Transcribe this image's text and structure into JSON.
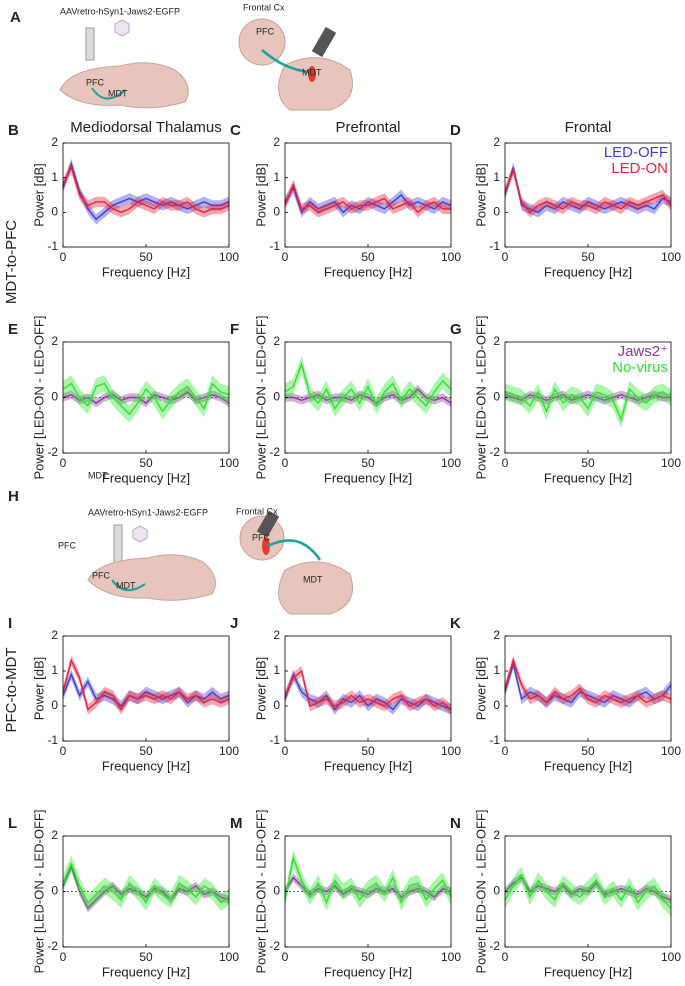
{
  "figure": {
    "panel_a": "A",
    "panel_h": "H",
    "row_labels": [
      "MDT-to-PFC",
      "PFC-to-MDT"
    ],
    "schematic_a": {
      "virus": "AAVretro-hSyn1-Jaws2-EGFP",
      "pfc": "PFC",
      "mdt": "MDT",
      "frontal": "Frontal Cx",
      "pfc2": "PFC",
      "mdt2": "MDT"
    },
    "schematic_h": {
      "virus": "AAVretro-hSyn1-Jaws2-EGFP",
      "stray_pfc": "PFC",
      "pfc": "PFC",
      "mdt": "MDT",
      "frontal": "Frontal Cx",
      "pfc2": "PFC",
      "mdt2": "MDT"
    },
    "stray_mdt": "MDT"
  },
  "chart_data": [
    {
      "type": "line",
      "panel": "B",
      "title": "Mediodorsal Thalamus",
      "xlabel": "Frequency [Hz]",
      "ylabel": "Power [dB]",
      "x": [
        0,
        5,
        10,
        15,
        20,
        25,
        30,
        35,
        40,
        45,
        50,
        55,
        60,
        65,
        70,
        75,
        80,
        85,
        90,
        95,
        100
      ],
      "xlim": [
        0,
        100
      ],
      "xticks": [
        0,
        50,
        100
      ],
      "ylim": [
        -1,
        2
      ],
      "yticks": [
        -1,
        0,
        1,
        2
      ],
      "series": [
        {
          "color": "#3b3fd6",
          "error": 0.15,
          "values": [
            0.7,
            1.4,
            0.6,
            0.1,
            -0.2,
            0.0,
            0.2,
            0.3,
            0.4,
            0.3,
            0.4,
            0.3,
            0.2,
            0.3,
            0.2,
            0.1,
            0.2,
            0.3,
            0.2,
            0.2,
            0.3
          ]
        },
        {
          "color": "#e4243a",
          "error": 0.15,
          "values": [
            0.8,
            1.3,
            0.5,
            0.2,
            0.3,
            0.3,
            0.1,
            0.0,
            0.1,
            0.3,
            0.2,
            0.1,
            0.3,
            0.2,
            0.2,
            0.3,
            0.1,
            0.0,
            0.1,
            0.1,
            0.2
          ]
        }
      ]
    },
    {
      "type": "line",
      "panel": "C",
      "title": "Prefrontal",
      "xlabel": "Frequency [Hz]",
      "ylabel": "Power [dB]",
      "x": [
        0,
        5,
        10,
        15,
        20,
        25,
        30,
        35,
        40,
        45,
        50,
        55,
        60,
        65,
        70,
        75,
        80,
        85,
        90,
        95,
        100
      ],
      "xlim": [
        0,
        100
      ],
      "xticks": [
        0,
        50,
        100
      ],
      "ylim": [
        -1,
        2
      ],
      "yticks": [
        -1,
        0,
        1,
        2
      ],
      "series": [
        {
          "color": "#3b3fd6",
          "error": 0.15,
          "values": [
            0.3,
            0.7,
            0.0,
            0.3,
            0.1,
            0.2,
            0.3,
            0.0,
            0.2,
            0.1,
            0.3,
            0.2,
            0.1,
            0.3,
            0.5,
            0.2,
            0.3,
            0.2,
            0.1,
            0.3,
            0.2
          ]
        },
        {
          "color": "#e4243a",
          "error": 0.15,
          "values": [
            0.2,
            0.8,
            0.1,
            0.2,
            0.0,
            0.1,
            0.2,
            0.3,
            0.1,
            0.2,
            0.2,
            0.3,
            0.4,
            0.1,
            0.2,
            0.3,
            0.0,
            0.2,
            0.3,
            0.1,
            0.1
          ]
        }
      ]
    },
    {
      "type": "line",
      "panel": "D",
      "title": "Frontal",
      "xlabel": "Frequency [Hz]",
      "ylabel": "Power [dB]",
      "legend": "upper right",
      "x": [
        0,
        5,
        10,
        15,
        20,
        25,
        30,
        35,
        40,
        45,
        50,
        55,
        60,
        65,
        70,
        75,
        80,
        85,
        90,
        95,
        100
      ],
      "xlim": [
        0,
        100
      ],
      "xticks": [
        0,
        50,
        100
      ],
      "ylim": [
        -1,
        2
      ],
      "yticks": [
        -1,
        0,
        1,
        2
      ],
      "series": [
        {
          "name": "LED-OFF",
          "color": "#3b3fd6",
          "error": 0.15,
          "values": [
            0.5,
            1.3,
            0.2,
            0.1,
            0.0,
            0.2,
            0.1,
            0.3,
            0.2,
            0.1,
            0.3,
            0.2,
            0.1,
            0.2,
            0.3,
            0.2,
            0.1,
            0.2,
            0.1,
            0.4,
            0.3
          ]
        },
        {
          "name": "LED-ON",
          "color": "#e4243a",
          "error": 0.15,
          "values": [
            0.6,
            1.2,
            0.3,
            0.0,
            0.2,
            0.3,
            0.2,
            0.1,
            0.3,
            0.2,
            0.2,
            0.1,
            0.3,
            0.2,
            0.1,
            0.3,
            0.2,
            0.3,
            0.4,
            0.5,
            0.2
          ]
        }
      ]
    },
    {
      "type": "line",
      "panel": "E",
      "xlabel": "Frequency [Hz]",
      "ylabel": "Power [LED-ON - LED-OFF]",
      "hline": 0,
      "x": [
        0,
        5,
        10,
        15,
        20,
        25,
        30,
        35,
        40,
        45,
        50,
        55,
        60,
        65,
        70,
        75,
        80,
        85,
        90,
        95,
        100
      ],
      "xlim": [
        0,
        100
      ],
      "xticks": [
        0,
        50,
        100
      ],
      "ylim": [
        -2,
        2
      ],
      "yticks": [
        -2,
        0,
        2
      ],
      "series": [
        {
          "color": "#8b3a9c",
          "error": 0.15,
          "values": [
            0,
            0.1,
            -0.1,
            0,
            -0.2,
            0,
            0.1,
            -0.1,
            0,
            0,
            -0.2,
            0.1,
            0,
            -0.1,
            0,
            0.2,
            -0.1,
            0,
            0.1,
            0,
            -0.2
          ]
        },
        {
          "color": "#2fe22f",
          "error": 0.3,
          "values": [
            0.3,
            0.5,
            0,
            -0.3,
            0.4,
            0.5,
            0,
            -0.3,
            -0.6,
            -0.2,
            0.3,
            0,
            -0.5,
            -0.1,
            0.2,
            0.4,
            0,
            -0.4,
            0.5,
            0.2,
            0.1
          ]
        }
      ]
    },
    {
      "type": "line",
      "panel": "F",
      "xlabel": "Frequency [Hz]",
      "ylabel": "Power [LED-ON - LED-OFF]",
      "hline": 0,
      "x": [
        0,
        5,
        10,
        15,
        20,
        25,
        30,
        35,
        40,
        45,
        50,
        55,
        60,
        65,
        70,
        75,
        80,
        85,
        90,
        95,
        100
      ],
      "xlim": [
        0,
        100
      ],
      "xticks": [
        0,
        50,
        100
      ],
      "ylim": [
        -2,
        2
      ],
      "yticks": [
        -2,
        0,
        2
      ],
      "series": [
        {
          "color": "#8b3a9c",
          "error": 0.15,
          "values": [
            0,
            0,
            -0.1,
            0,
            0.1,
            -0.1,
            0,
            0,
            -0.1,
            0.1,
            0,
            -0.2,
            0,
            0.1,
            -0.1,
            0,
            0.3,
            0,
            -0.1,
            0,
            -0.2
          ]
        },
        {
          "color": "#2fe22f",
          "error": 0.3,
          "values": [
            0.2,
            0.4,
            1.2,
            0.1,
            -0.2,
            0.3,
            -0.4,
            0,
            0.3,
            -0.2,
            0.4,
            -0.3,
            0.2,
            0.5,
            -0.1,
            0.3,
            0,
            -0.3,
            0.2,
            0.6,
            0.3
          ]
        }
      ]
    },
    {
      "type": "line",
      "panel": "G",
      "xlabel": "Frequency [Hz]",
      "ylabel": "Power [LED-ON - LED-OFF]",
      "hline": 0,
      "legend": "upper right",
      "x": [
        0,
        5,
        10,
        15,
        20,
        25,
        30,
        35,
        40,
        45,
        50,
        55,
        60,
        65,
        70,
        75,
        80,
        85,
        90,
        95,
        100
      ],
      "xlim": [
        0,
        100
      ],
      "xticks": [
        0,
        50,
        100
      ],
      "ylim": [
        -2,
        2
      ],
      "yticks": [
        -2,
        0,
        2
      ],
      "series": [
        {
          "name": "Jaws2⁺",
          "color": "#8b3a9c",
          "error": 0.15,
          "values": [
            0.1,
            0,
            -0.1,
            0.1,
            0,
            -0.1,
            0,
            0.1,
            -0.1,
            0,
            0.1,
            0,
            -0.1,
            0,
            0.1,
            0,
            -0.1,
            0,
            0.1,
            0,
            0
          ]
        },
        {
          "name": "No-virus",
          "color": "#2fe22f",
          "error": 0.3,
          "values": [
            0.2,
            0.1,
            0,
            -0.3,
            0.2,
            -0.5,
            0.3,
            -0.2,
            0.1,
            0,
            -0.4,
            0.2,
            0.1,
            -0.1,
            -0.8,
            0.3,
            0,
            -0.2,
            0.1,
            0.2,
            0
          ]
        }
      ]
    },
    {
      "type": "line",
      "panel": "I",
      "xlabel": "Frequency [Hz]",
      "ylabel": "Power [dB]",
      "x": [
        0,
        5,
        10,
        15,
        20,
        25,
        30,
        35,
        40,
        45,
        50,
        55,
        60,
        65,
        70,
        75,
        80,
        85,
        90,
        95,
        100
      ],
      "xlim": [
        0,
        100
      ],
      "xticks": [
        0,
        50,
        100
      ],
      "ylim": [
        -1,
        2
      ],
      "yticks": [
        -1,
        0,
        1,
        2
      ],
      "series": [
        {
          "color": "#3b3fd6",
          "error": 0.15,
          "values": [
            0.3,
            0.9,
            0.3,
            0.7,
            0.2,
            0.3,
            0.2,
            0.0,
            0.3,
            0.2,
            0.4,
            0.3,
            0.2,
            0.3,
            0.4,
            0.1,
            0.3,
            0.2,
            0.4,
            0.2,
            0.3
          ]
        },
        {
          "color": "#e4243a",
          "error": 0.15,
          "values": [
            0.4,
            1.3,
            0.8,
            -0.1,
            0.1,
            0.4,
            0.3,
            -0.1,
            0.3,
            0.2,
            0.3,
            0.2,
            0.3,
            0.2,
            0.4,
            0.2,
            0.3,
            0.1,
            0.2,
            0.1,
            0.2
          ]
        }
      ]
    },
    {
      "type": "line",
      "panel": "J",
      "xlabel": "Frequency [Hz]",
      "ylabel": "Power [dB]",
      "x": [
        0,
        5,
        10,
        15,
        20,
        25,
        30,
        35,
        40,
        45,
        50,
        55,
        60,
        65,
        70,
        75,
        80,
        85,
        90,
        95,
        100
      ],
      "xlim": [
        0,
        100
      ],
      "xticks": [
        0,
        50,
        100
      ],
      "ylim": [
        -1,
        2
      ],
      "yticks": [
        -1,
        0,
        1,
        2
      ],
      "series": [
        {
          "color": "#3b3fd6",
          "error": 0.15,
          "values": [
            0.2,
            0.9,
            0.4,
            0.2,
            0.1,
            0.3,
            -0.1,
            0.2,
            0.1,
            0.3,
            0.0,
            0.2,
            0.1,
            -0.1,
            0.2,
            0.1,
            0.0,
            0.2,
            0.1,
            0.0,
            -0.1
          ]
        },
        {
          "color": "#e4243a",
          "error": 0.15,
          "values": [
            0.3,
            0.8,
            1.0,
            0.0,
            0.1,
            0.2,
            0.0,
            0.1,
            0.3,
            0.1,
            0.2,
            0.1,
            0.0,
            0.2,
            0.3,
            0.0,
            0.1,
            0.2,
            0.0,
            0.1,
            -0.1
          ]
        }
      ]
    },
    {
      "type": "line",
      "panel": "K",
      "xlabel": "Frequency [Hz]",
      "ylabel": "Power [dB]",
      "x": [
        0,
        5,
        10,
        15,
        20,
        25,
        30,
        35,
        40,
        45,
        50,
        55,
        60,
        65,
        70,
        75,
        80,
        85,
        90,
        95,
        100
      ],
      "xlim": [
        0,
        100
      ],
      "xticks": [
        0,
        50,
        100
      ],
      "ylim": [
        -1,
        2
      ],
      "yticks": [
        -1,
        0,
        1,
        2
      ],
      "series": [
        {
          "color": "#3b3fd6",
          "error": 0.15,
          "values": [
            0.4,
            1.2,
            0.2,
            0.4,
            0.3,
            0.1,
            0.3,
            0.2,
            0.1,
            0.4,
            0.3,
            0.2,
            0.1,
            0.3,
            0.2,
            0.1,
            0.3,
            0.4,
            0.2,
            0.3,
            0.6
          ]
        },
        {
          "color": "#e4243a",
          "error": 0.15,
          "values": [
            0.5,
            1.3,
            0.6,
            0.2,
            0.3,
            0.1,
            0.4,
            0.2,
            0.3,
            0.5,
            0.2,
            0.1,
            0.3,
            0.2,
            0.1,
            0.2,
            0.3,
            0.1,
            0.2,
            0.3,
            0.2
          ]
        }
      ]
    },
    {
      "type": "line",
      "panel": "L",
      "xlabel": "Frequency [Hz]",
      "ylabel": "Power [LED-ON - LED-OFF]",
      "hline": 0,
      "x": [
        0,
        5,
        10,
        15,
        20,
        25,
        30,
        35,
        40,
        45,
        50,
        55,
        60,
        65,
        70,
        75,
        80,
        85,
        90,
        95,
        100
      ],
      "xlim": [
        0,
        100
      ],
      "xticks": [
        0,
        50,
        100
      ],
      "ylim": [
        -2,
        2
      ],
      "yticks": [
        -2,
        0,
        2
      ],
      "series": [
        {
          "color": "#8b3a9c",
          "error": 0.15,
          "values": [
            0.2,
            0.9,
            0,
            -0.6,
            -0.3,
            0,
            0.2,
            -0.1,
            0.1,
            0,
            -0.2,
            0.1,
            0,
            -0.3,
            0.1,
            0,
            0.2,
            -0.1,
            0,
            -0.2,
            -0.3
          ]
        },
        {
          "color": "#2fe22f",
          "error": 0.3,
          "values": [
            0.3,
            1.0,
            0.2,
            -0.4,
            -0.1,
            0.2,
            0,
            -0.3,
            0.3,
            0,
            -0.4,
            0.2,
            -0.1,
            -0.3,
            0.3,
            0.1,
            -0.2,
            0.2,
            0,
            -0.4,
            -0.2
          ]
        }
      ]
    },
    {
      "type": "line",
      "panel": "M",
      "xlabel": "Frequency [Hz]",
      "ylabel": "Power [LED-ON - LED-OFF]",
      "hline": 0,
      "x": [
        0,
        5,
        10,
        15,
        20,
        25,
        30,
        35,
        40,
        45,
        50,
        55,
        60,
        65,
        70,
        75,
        80,
        85,
        90,
        95,
        100
      ],
      "xlim": [
        0,
        100
      ],
      "xticks": [
        0,
        50,
        100
      ],
      "ylim": [
        -2,
        2
      ],
      "yticks": [
        -2,
        0,
        2
      ],
      "series": [
        {
          "color": "#8b3a9c",
          "error": 0.15,
          "values": [
            0,
            0.5,
            0.2,
            -0.1,
            0.1,
            0,
            0.2,
            -0.1,
            0.1,
            0,
            -0.1,
            0.1,
            0,
            0.1,
            -0.2,
            0,
            0.1,
            0,
            -0.2,
            0.1,
            0
          ]
        },
        {
          "color": "#2fe22f",
          "error": 0.3,
          "values": [
            -0.3,
            1.2,
            0.4,
            -0.2,
            0.3,
            -0.4,
            0.4,
            0,
            0.2,
            -0.3,
            0.1,
            0.3,
            -0.1,
            0.5,
            -0.4,
            0.2,
            0.3,
            -0.3,
            0.1,
            0.4,
            -0.2
          ]
        }
      ]
    },
    {
      "type": "line",
      "panel": "N",
      "xlabel": "Frequency [Hz]",
      "ylabel": "Power [LED-ON - LED-OFF]",
      "hline": 0,
      "x": [
        0,
        5,
        10,
        15,
        20,
        25,
        30,
        35,
        40,
        45,
        50,
        55,
        60,
        65,
        70,
        75,
        80,
        85,
        90,
        95,
        100
      ],
      "xlim": [
        0,
        100
      ],
      "xticks": [
        0,
        50,
        100
      ],
      "ylim": [
        -2,
        2
      ],
      "yticks": [
        -2,
        0,
        2
      ],
      "series": [
        {
          "color": "#8b3a9c",
          "error": 0.15,
          "values": [
            0,
            0.3,
            0.5,
            0,
            0.2,
            0.1,
            0,
            0.2,
            -0.1,
            0.1,
            0,
            0.3,
            -0.1,
            0,
            0.1,
            0,
            -0.1,
            0.1,
            0,
            -0.2,
            -0.3
          ]
        },
        {
          "color": "#2fe22f",
          "error": 0.3,
          "values": [
            -0.3,
            0.2,
            0.6,
            -0.2,
            0.4,
            0,
            -0.3,
            0.3,
            0,
            -0.2,
            0.1,
            0.4,
            -0.2,
            0.1,
            -0.3,
            0.2,
            -0.4,
            0,
            0.2,
            -0.3,
            -0.6
          ]
        }
      ]
    }
  ]
}
